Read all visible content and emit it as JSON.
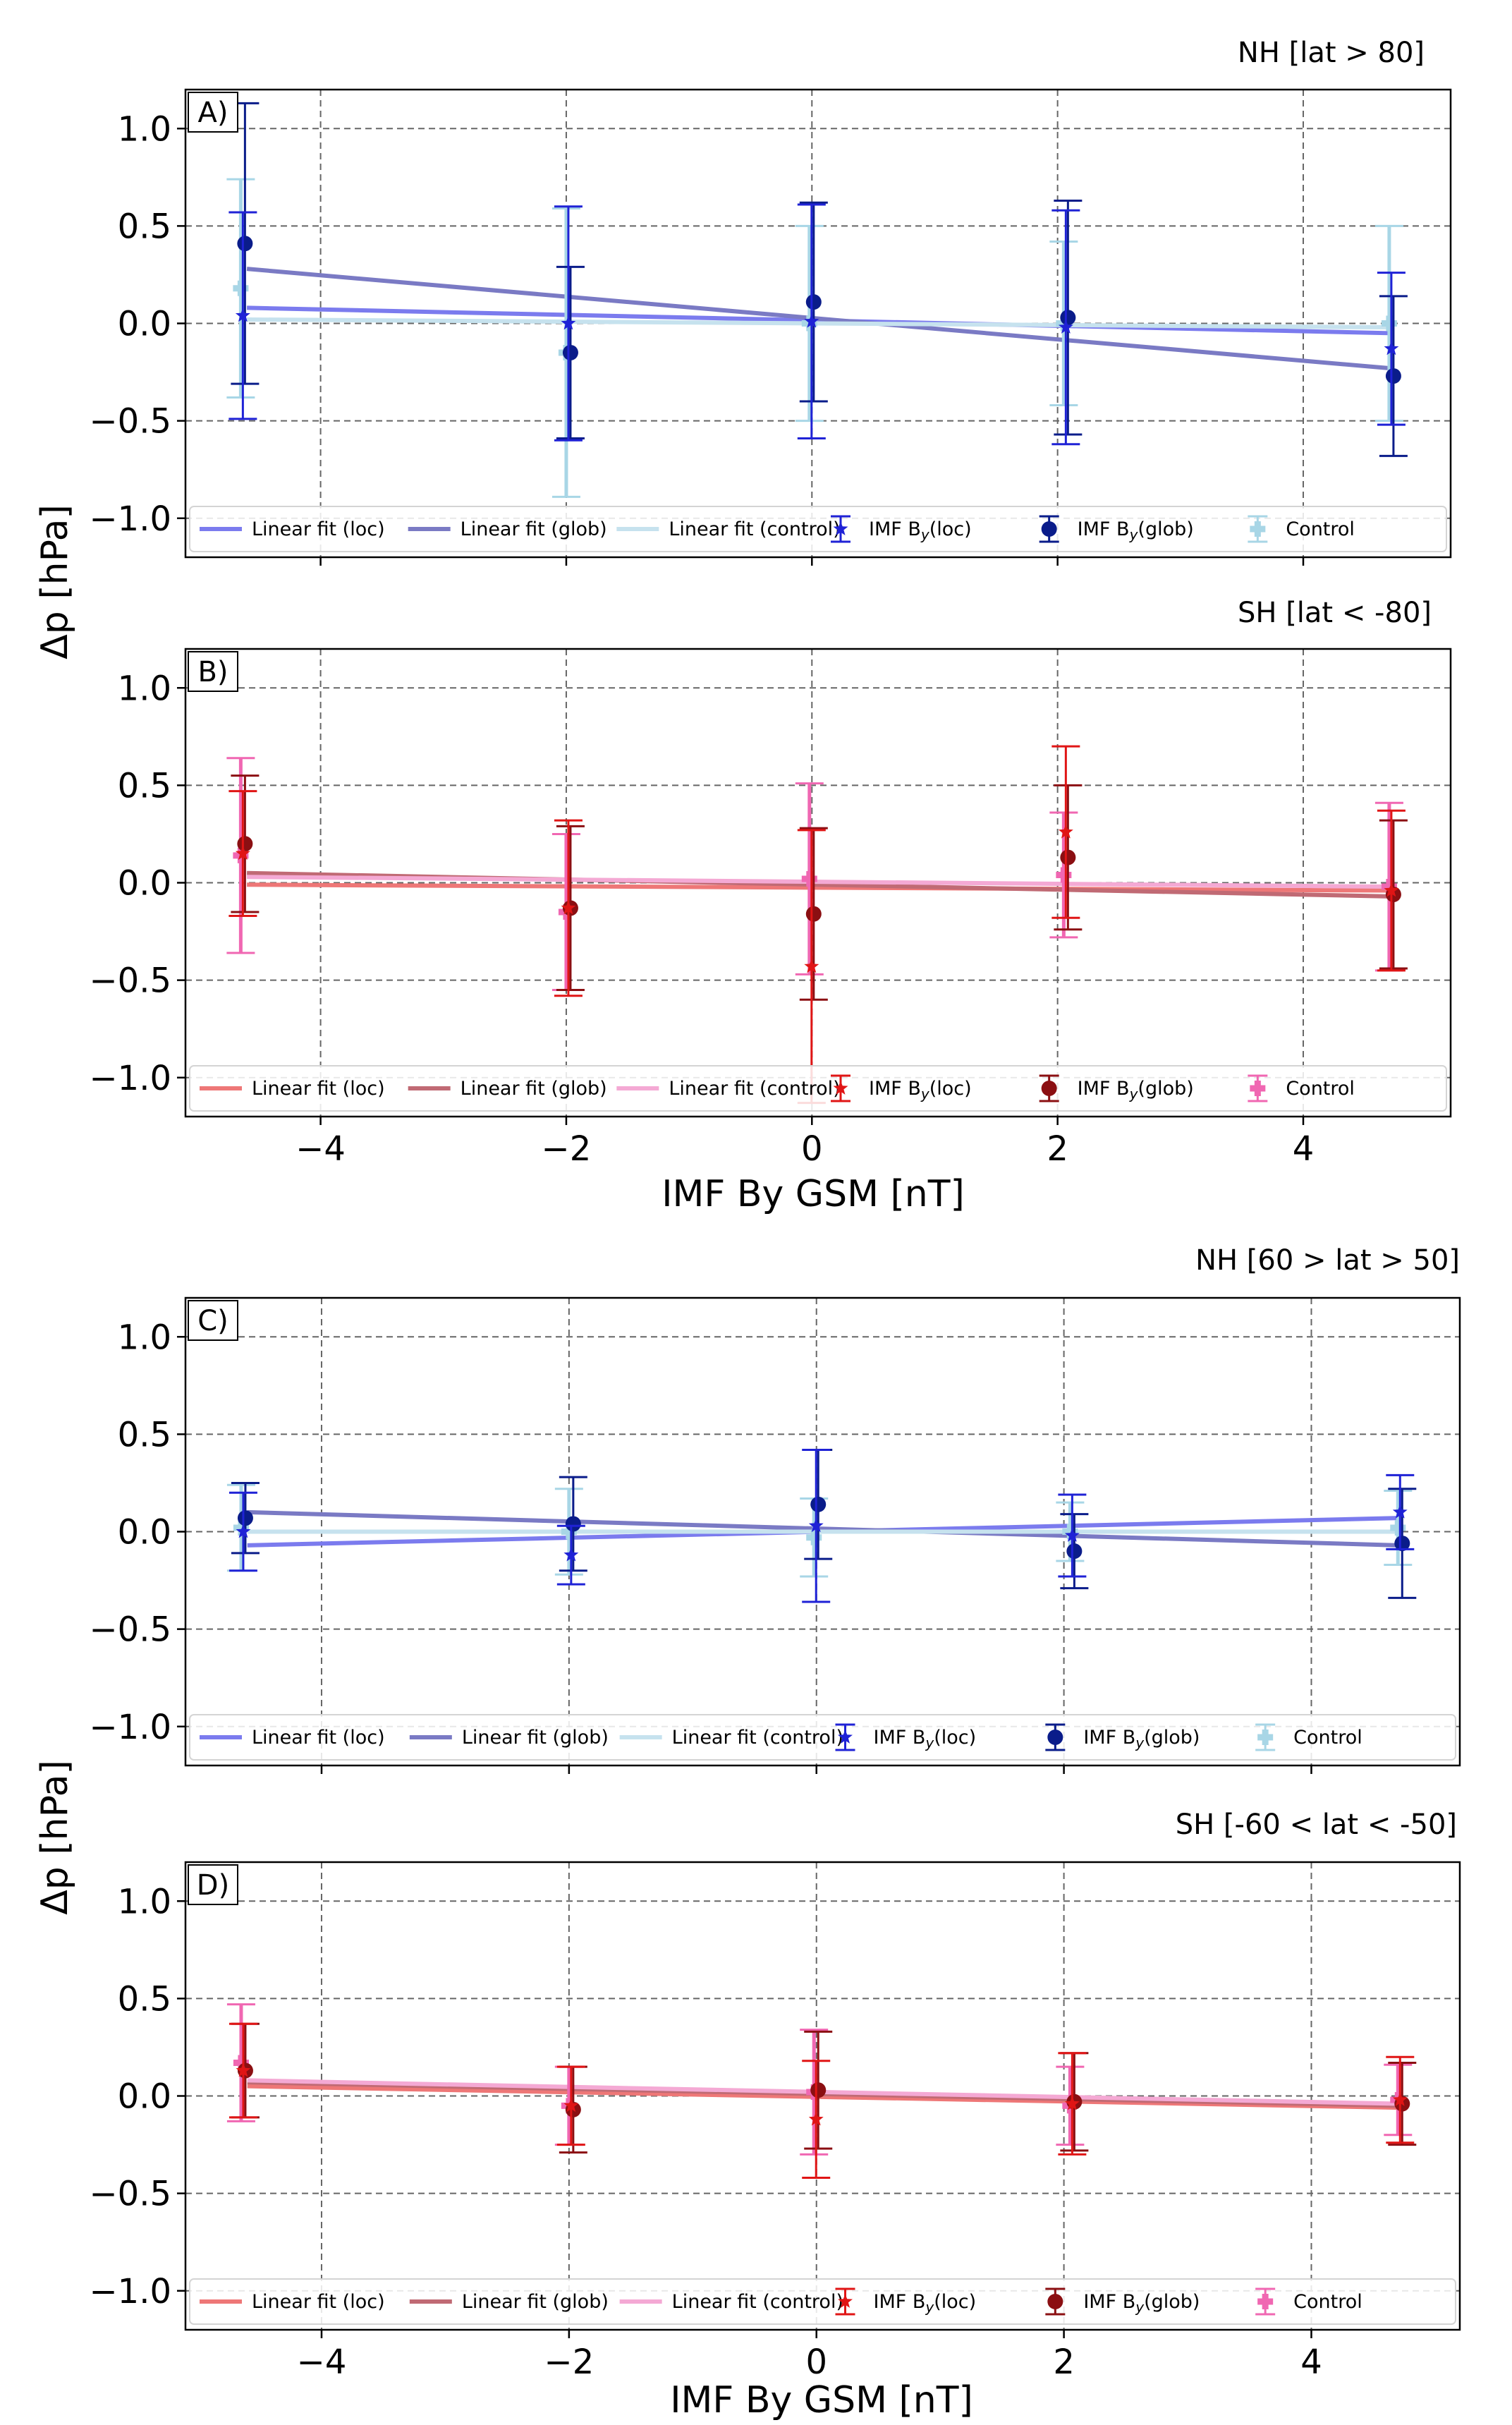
{
  "figure": {
    "ylabel_top": "Δp [hPa]",
    "ylabel_bottom": "Δp [hPa]",
    "xlabel_top": "IMF By GSM [nT]",
    "xlabel_bottom": "IMF By GSM [nT]"
  },
  "colors": {
    "loc_fit_nh": "#7b7bee",
    "glob_fit_nh": "#7a7ac4",
    "ctrl_fit_nh": "#c6e2ee",
    "loc_nh": "#1f22d6",
    "glob_nh": "#0a1c8a",
    "ctrl_nh": "#a8d6e6",
    "loc_fit_sh": "#ee7777",
    "glob_fit_sh": "#c06a74",
    "ctrl_fit_sh": "#f4a9d4",
    "loc_sh": "#e01515",
    "glob_sh": "#8b0f12",
    "ctrl_sh": "#f067b2"
  },
  "chart_data": [
    {
      "panel": "A)",
      "title": "NH [lat > 80]",
      "type": "scatter",
      "xlim": [
        -5.1,
        5.2
      ],
      "ylim": [
        -1.2,
        1.2
      ],
      "xticks": [
        -4,
        -2,
        0,
        2,
        4
      ],
      "yticks": [
        1.0,
        0.5,
        0.0,
        -0.5,
        -1.0
      ],
      "ytick_labels": [
        "1.0",
        "0.5",
        "0.0",
        "−0.5",
        "−1.0"
      ],
      "xtick_labels": [
        "",
        "",
        "",
        "",
        ""
      ],
      "palette": "nh",
      "legend": [
        "Linear fit (loc)",
        "Linear fit (glob)",
        "Linear fit (control)",
        "IMF B",
        "IMF B",
        "Control"
      ],
      "legend_suffix": [
        "",
        "",
        "",
        "(loc)",
        "(glob)",
        ""
      ],
      "fits": [
        {
          "name": "Linear fit (loc)",
          "x": [
            -4.6,
            4.7
          ],
          "y": [
            0.08,
            -0.05
          ]
        },
        {
          "name": "Linear fit (glob)",
          "x": [
            -4.6,
            4.7
          ],
          "y": [
            0.28,
            -0.23
          ]
        },
        {
          "name": "Linear fit (control)",
          "x": [
            -4.6,
            4.7
          ],
          "y": [
            0.02,
            -0.02
          ]
        }
      ],
      "series": [
        {
          "name": "IMF By(loc)",
          "marker": "star",
          "x": [
            -4.65,
            -2.0,
            -0.02,
            2.05,
            4.7
          ],
          "y": [
            0.04,
            0.0,
            0.01,
            -0.02,
            -0.13
          ],
          "err": [
            0.53,
            0.6,
            0.6,
            0.6,
            0.39
          ]
        },
        {
          "name": "IMF By(glob)",
          "marker": "circle",
          "x": [
            -4.65,
            -2.0,
            -0.02,
            2.05,
            4.7
          ],
          "y": [
            0.41,
            -0.15,
            0.11,
            0.03,
            -0.27
          ],
          "err": [
            0.72,
            0.44,
            0.51,
            0.6,
            0.41
          ]
        },
        {
          "name": "Control",
          "marker": "plus",
          "x": [
            -4.65,
            -2.0,
            -0.02,
            2.05,
            4.7
          ],
          "y": [
            0.18,
            -0.15,
            0.0,
            0.0,
            0.0
          ],
          "err": [
            0.56,
            0.74,
            0.5,
            0.42,
            0.5
          ]
        }
      ]
    },
    {
      "panel": "B)",
      "title": "SH [lat < -80]",
      "type": "scatter",
      "xlim": [
        -5.1,
        5.2
      ],
      "ylim": [
        -1.2,
        1.2
      ],
      "xticks": [
        -4,
        -2,
        0,
        2,
        4
      ],
      "yticks": [
        1.0,
        0.5,
        0.0,
        -0.5,
        -1.0
      ],
      "ytick_labels": [
        "1.0",
        "0.5",
        "0.0",
        "−0.5",
        "−1.0"
      ],
      "xtick_labels": [
        "−4",
        "−2",
        "0",
        "2",
        "4"
      ],
      "palette": "sh",
      "legend": [
        "Linear fit (loc)",
        "Linear fit (glob)",
        "Linear fit (control)",
        "IMF B",
        "IMF B",
        "Control"
      ],
      "legend_suffix": [
        "",
        "",
        "",
        "(loc)",
        "(glob)",
        ""
      ],
      "fits": [
        {
          "name": "Linear fit (loc)",
          "x": [
            -4.6,
            4.7
          ],
          "y": [
            -0.01,
            -0.04
          ]
        },
        {
          "name": "Linear fit (glob)",
          "x": [
            -4.6,
            4.7
          ],
          "y": [
            0.05,
            -0.07
          ]
        },
        {
          "name": "Linear fit (control)",
          "x": [
            -4.6,
            4.7
          ],
          "y": [
            0.03,
            -0.02
          ]
        }
      ],
      "series": [
        {
          "name": "IMF By(loc)",
          "marker": "star",
          "x": [
            -4.65,
            -2.0,
            -0.02,
            2.05,
            4.7
          ],
          "y": [
            0.15,
            -0.13,
            -0.43,
            0.26,
            -0.04
          ],
          "err": [
            0.32,
            0.45,
            0.7,
            0.44,
            0.41
          ]
        },
        {
          "name": "IMF By(glob)",
          "marker": "circle",
          "x": [
            -4.65,
            -2.0,
            -0.02,
            2.05,
            4.7
          ],
          "y": [
            0.2,
            -0.13,
            -0.16,
            0.13,
            -0.06
          ],
          "err": [
            0.35,
            0.42,
            0.44,
            0.37,
            0.38
          ]
        },
        {
          "name": "Control",
          "marker": "plus",
          "x": [
            -4.65,
            -2.0,
            -0.02,
            2.05,
            4.7
          ],
          "y": [
            0.14,
            -0.15,
            0.02,
            0.04,
            -0.02
          ],
          "err": [
            0.5,
            0.4,
            0.49,
            0.32,
            0.43
          ]
        }
      ]
    },
    {
      "panel": "C)",
      "title": "NH [60 > lat > 50]",
      "type": "scatter",
      "xlim": [
        -5.1,
        5.2
      ],
      "ylim": [
        -1.2,
        1.2
      ],
      "xticks": [
        -4,
        -2,
        0,
        2,
        4
      ],
      "yticks": [
        1.0,
        0.5,
        0.0,
        -0.5,
        -1.0
      ],
      "ytick_labels": [
        "1.0",
        "0.5",
        "0.0",
        "−0.5",
        "−1.0"
      ],
      "xtick_labels": [
        "",
        "",
        "",
        "",
        ""
      ],
      "palette": "nh",
      "legend": [
        "Linear fit (loc)",
        "Linear fit (glob)",
        "Linear fit (control)",
        "IMF B",
        "IMF B",
        "Control"
      ],
      "legend_suffix": [
        "",
        "",
        "",
        "(loc)",
        "(glob)",
        ""
      ],
      "fits": [
        {
          "name": "Linear fit (loc)",
          "x": [
            -4.6,
            4.7
          ],
          "y": [
            -0.07,
            0.07
          ]
        },
        {
          "name": "Linear fit (glob)",
          "x": [
            -4.6,
            4.7
          ],
          "y": [
            0.1,
            -0.07
          ]
        },
        {
          "name": "Linear fit (control)",
          "x": [
            -4.6,
            4.7
          ],
          "y": [
            0.0,
            0.0
          ]
        }
      ],
      "series": [
        {
          "name": "IMF By(loc)",
          "marker": "star",
          "x": [
            -4.65,
            -2.0,
            -0.02,
            2.05,
            4.7
          ],
          "y": [
            0.0,
            -0.12,
            0.03,
            -0.02,
            0.1
          ],
          "err": [
            0.2,
            0.15,
            0.39,
            0.21,
            0.19
          ]
        },
        {
          "name": "IMF By(glob)",
          "marker": "circle",
          "x": [
            -4.65,
            -2.0,
            -0.02,
            2.05,
            4.7
          ],
          "y": [
            0.07,
            0.04,
            0.14,
            -0.1,
            -0.06
          ],
          "err": [
            0.18,
            0.24,
            0.28,
            0.19,
            0.28
          ]
        },
        {
          "name": "Control",
          "marker": "plus",
          "x": [
            -4.65,
            -2.0,
            -0.02,
            2.05,
            4.7
          ],
          "y": [
            0.02,
            0.0,
            -0.03,
            0.0,
            0.02
          ],
          "err": [
            0.22,
            0.22,
            0.2,
            0.15,
            0.19
          ]
        }
      ]
    },
    {
      "panel": "D)",
      "title": "SH [-60 < lat < -50]",
      "type": "scatter",
      "xlim": [
        -5.1,
        5.2
      ],
      "ylim": [
        -1.2,
        1.2
      ],
      "xticks": [
        -4,
        -2,
        0,
        2,
        4
      ],
      "yticks": [
        1.0,
        0.5,
        0.0,
        -0.5,
        -1.0
      ],
      "ytick_labels": [
        "1.0",
        "0.5",
        "0.0",
        "−0.5",
        "−1.0"
      ],
      "xtick_labels": [
        "−4",
        "−2",
        "0",
        "2",
        "4"
      ],
      "palette": "sh",
      "legend": [
        "Linear fit (loc)",
        "Linear fit (glob)",
        "Linear fit (control)",
        "IMF B",
        "IMF B",
        "Control"
      ],
      "legend_suffix": [
        "",
        "",
        "",
        "(loc)",
        "(glob)",
        ""
      ],
      "fits": [
        {
          "name": "Linear fit (loc)",
          "x": [
            -4.6,
            4.7
          ],
          "y": [
            0.05,
            -0.06
          ]
        },
        {
          "name": "Linear fit (glob)",
          "x": [
            -4.6,
            4.7
          ],
          "y": [
            0.07,
            -0.05
          ]
        },
        {
          "name": "Linear fit (control)",
          "x": [
            -4.6,
            4.7
          ],
          "y": [
            0.08,
            -0.04
          ]
        }
      ],
      "series": [
        {
          "name": "IMF By(loc)",
          "marker": "star",
          "x": [
            -4.65,
            -2.0,
            -0.02,
            2.05,
            4.7
          ],
          "y": [
            0.13,
            -0.05,
            -0.12,
            -0.04,
            -0.02
          ],
          "err": [
            0.24,
            0.2,
            0.3,
            0.26,
            0.22
          ]
        },
        {
          "name": "IMF By(glob)",
          "marker": "circle",
          "x": [
            -4.65,
            -2.0,
            -0.02,
            2.05,
            4.7
          ],
          "y": [
            0.13,
            -0.07,
            0.03,
            -0.03,
            -0.04
          ],
          "err": [
            0.24,
            0.22,
            0.3,
            0.25,
            0.21
          ]
        },
        {
          "name": "Control",
          "marker": "plus",
          "x": [
            -4.65,
            -2.0,
            -0.02,
            2.05,
            4.7
          ],
          "y": [
            0.17,
            -0.05,
            0.02,
            -0.05,
            -0.02
          ],
          "err": [
            0.3,
            0.2,
            0.32,
            0.2,
            0.18
          ]
        }
      ]
    }
  ]
}
